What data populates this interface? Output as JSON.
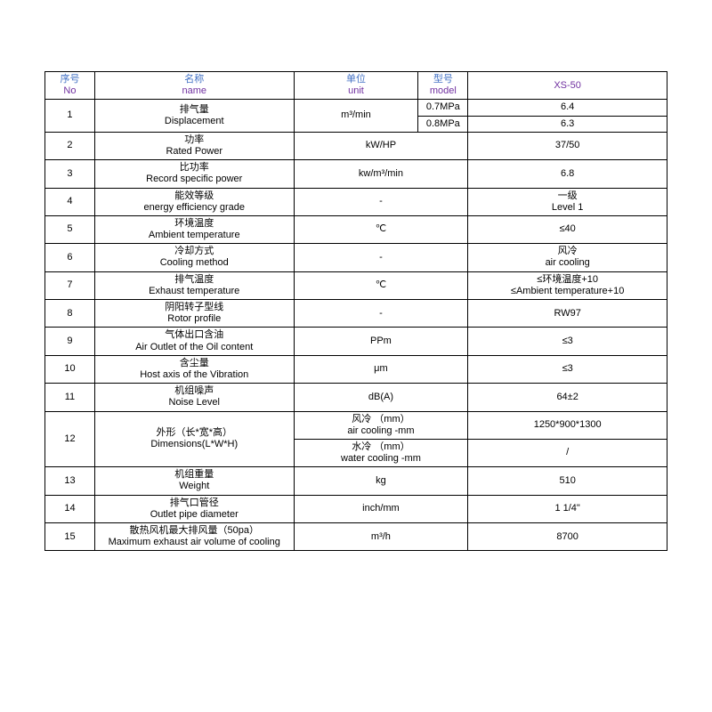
{
  "colors": {
    "border": "#000000",
    "header_blue": "#4472c4",
    "header_purple": "#7030a0",
    "text": "#000000"
  },
  "headers": {
    "no_cn": "序号",
    "no_en": "No",
    "name_cn": "名称",
    "name_en": "name",
    "unit_cn": "单位",
    "unit_en": "unit",
    "model_cn": "型号",
    "model_en": "model",
    "xs50": "XS-50"
  },
  "rows": {
    "r1": {
      "no": "1",
      "name_cn": "排气量",
      "name_en": "Displacement",
      "unit": "m³/min",
      "model_a": "0.7MPa",
      "model_b": "0.8MPa",
      "val_a": "6.4",
      "val_b": "6.3"
    },
    "r2": {
      "no": "2",
      "name_cn": "功率",
      "name_en": "Rated Power",
      "unit": "kW/HP",
      "val": "37/50"
    },
    "r3": {
      "no": "3",
      "name_cn": "比功率",
      "name_en": "Record specific power",
      "unit": "kw/m³/min",
      "val": "6.8"
    },
    "r4": {
      "no": "4",
      "name_cn": "能效等级",
      "name_en": "energy efficiency grade",
      "unit": "-",
      "val_cn": "一级",
      "val_en": "Level 1"
    },
    "r5": {
      "no": "5",
      "name_cn": "环境温度",
      "name_en": "Ambient temperature",
      "unit": "℃",
      "val": "≤40"
    },
    "r6": {
      "no": "6",
      "name_cn": "冷却方式",
      "name_en": "Cooling method",
      "unit": "-",
      "val_cn": "风冷",
      "val_en": "air cooling"
    },
    "r7": {
      "no": "7",
      "name_cn": "排气温度",
      "name_en": "Exhaust temperature",
      "unit": "℃",
      "val_cn": "≤环境温度+10",
      "val_en": "≤Ambient temperature+10"
    },
    "r8": {
      "no": "8",
      "name_cn": "阴阳转子型线",
      "name_en": "Rotor profile",
      "unit": "-",
      "val": "RW97"
    },
    "r9": {
      "no": "9",
      "name_cn": "气体出口含油",
      "name_en": "Air Outlet of the Oil content",
      "unit": "PPm",
      "val": "≤3"
    },
    "r10": {
      "no": "10",
      "name_cn": "含尘量",
      "name_en": "Host axis of the Vibration",
      "unit": "μm",
      "val": "≤3"
    },
    "r11": {
      "no": "11",
      "name_cn": "机组噪声",
      "name_en": "Noise Level",
      "unit": "dB(A)",
      "val": "64±2"
    },
    "r12": {
      "no": "12",
      "name_cn": "外形（长*宽*高）",
      "name_en": "Dimensions(L*W*H)",
      "unit_a_cn": "风冷 （mm）",
      "unit_a_en": "air cooling -mm",
      "unit_b_cn": "水冷 （mm）",
      "unit_b_en": "water cooling -mm",
      "val_a": "1250*900*1300",
      "val_b": "/"
    },
    "r13": {
      "no": "13",
      "name_cn": "机组重量",
      "name_en": "Weight",
      "unit": "kg",
      "val": "510"
    },
    "r14": {
      "no": "14",
      "name_cn": "排气口管径",
      "name_en": "Outlet pipe diameter",
      "unit": "inch/mm",
      "val": "1 1/4\""
    },
    "r15": {
      "no": "15",
      "name_cn": "散热风机最大排风量（50pa）",
      "name_en": "Maximum exhaust air volume of cooling",
      "unit": "m³/h",
      "val": "8700"
    }
  }
}
